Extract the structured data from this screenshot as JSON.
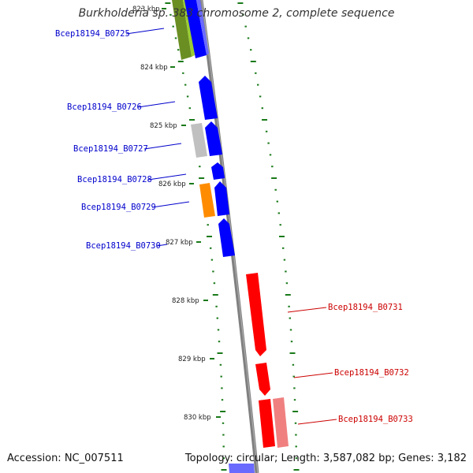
{
  "title": "Burkholderia sp. 383 chromosome 2, complete sequence",
  "accession": "Accession: NC_007511",
  "topology": "Topology: circular; Length: 3,587,082 bp; Genes: 3,182",
  "kbp_labels": [
    "823 kbp",
    "824 kbp",
    "825 kbp",
    "826 kbp",
    "827 kbp",
    "828 kbp",
    "829 kbp",
    "830 kbp"
  ],
  "genes": [
    {
      "name": "Bcep18194_B0725",
      "strand": "forward",
      "color": "#0000cc"
    },
    {
      "name": "Bcep18194_B0726",
      "strand": "forward",
      "color": "#0000cc"
    },
    {
      "name": "Bcep18194_B0727",
      "strand": "forward",
      "color": "#0000cc"
    },
    {
      "name": "Bcep18194_B0728",
      "strand": "forward",
      "color": "#0000cc"
    },
    {
      "name": "Bcep18194_B0729",
      "strand": "forward",
      "color": "#0000cc"
    },
    {
      "name": "Bcep18194_B0730",
      "strand": "forward",
      "color": "#0000cc"
    },
    {
      "name": "Bcep18194_B0731",
      "strand": "reverse",
      "color": "#cc0000"
    },
    {
      "name": "Bcep18194_B0732",
      "strand": "reverse",
      "color": "#cc0000"
    },
    {
      "name": "Bcep18194_B0733",
      "strand": "reverse",
      "color": "#cc0000"
    }
  ],
  "colors": {
    "forward_cds": "#0000ff",
    "reverse_cds": "#ff0000",
    "reverse_pale": "#f08080",
    "olive_feature": "#6b8e23",
    "gray_feature": "#bbbbbb",
    "orange_feature": "#ff8c00",
    "backbone": "#808080",
    "tick": "#1a7a1a"
  }
}
